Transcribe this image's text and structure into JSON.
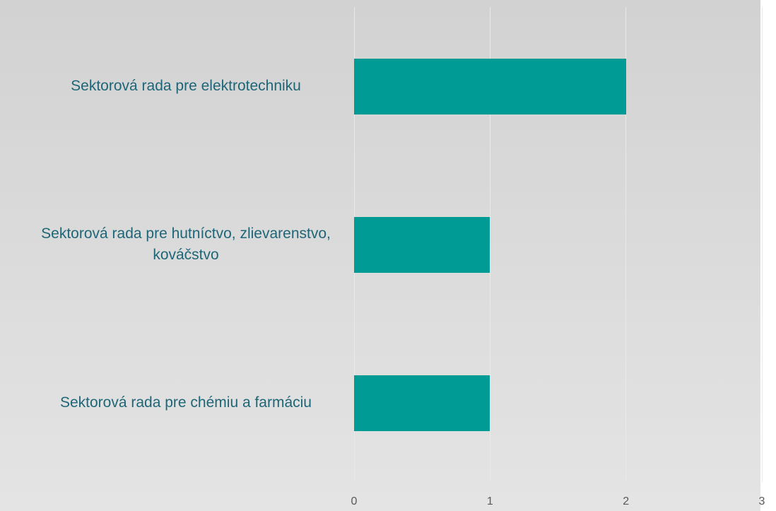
{
  "chart_data": {
    "type": "barh",
    "categories": [
      "Sektorová rada pre elektrotechniku",
      "Sektorová rada pre hutníctvo, zlievarenstvo, kováčstvo",
      "Sektorová rada pre chémiu a farmáciu"
    ],
    "values": [
      2,
      1,
      1
    ],
    "color": "#009b95",
    "xlim": [
      0,
      3
    ],
    "xticks": [
      0,
      1,
      2,
      3
    ],
    "grid": true
  }
}
